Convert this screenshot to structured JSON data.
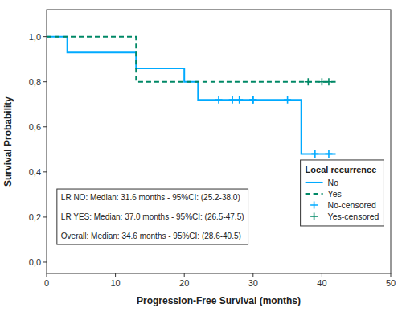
{
  "chart_data": {
    "type": "line",
    "xlabel": "Progression-Free Survival (months)",
    "ylabel": "Survival Probability",
    "legend_title": "Local recurrence",
    "annotation": "LR NO: Median: 31.6 months - 95%CI: (25.2-38.0)\n\nLR YES: Median: 37.0 months - 95%CI: (26.5-47.5)\n\nOverall: Median: 34.6 months - 95%CI: (28.6-40.5)",
    "xlim": [
      0,
      50
    ],
    "ylim": [
      -0.05,
      1.12
    ],
    "xticks": [
      0,
      10,
      20,
      30,
      40,
      50
    ],
    "yticks": [
      {
        "value": 0.0,
        "label": "0,0"
      },
      {
        "value": 0.2,
        "label": "0,2"
      },
      {
        "value": 0.4,
        "label": "0,4"
      },
      {
        "value": 0.6,
        "label": "0,6"
      },
      {
        "value": 0.8,
        "label": "0,8"
      },
      {
        "value": 1.0,
        "label": "1,0"
      }
    ],
    "grid": false,
    "legend": "lower right",
    "series": [
      {
        "name": "No",
        "type": "step",
        "color": "#00AAFF",
        "line_style": "solid",
        "x": [
          0,
          3,
          3,
          5,
          5,
          13,
          13,
          20,
          20,
          22,
          22,
          24,
          24,
          37,
          37,
          42
        ],
        "values": [
          1.0,
          1.0,
          0.93,
          0.93,
          0.93,
          0.93,
          0.86,
          0.86,
          0.8,
          0.8,
          0.72,
          0.72,
          0.72,
          0.72,
          0.48,
          0.48
        ]
      },
      {
        "name": "Yes",
        "type": "step",
        "color": "#008866",
        "line_style": "dashed",
        "x": [
          0,
          13,
          13,
          42
        ],
        "values": [
          1.0,
          1.0,
          0.8,
          0.8
        ]
      },
      {
        "name": "No-censored",
        "type": "scatter",
        "color": "#00AAFF",
        "marker": "plus",
        "x": [
          25,
          27,
          28,
          30,
          30,
          35,
          39,
          41
        ],
        "values": [
          0.72,
          0.72,
          0.72,
          0.72,
          0.72,
          0.72,
          0.48,
          0.48
        ]
      },
      {
        "name": "Yes-censored",
        "type": "scatter",
        "color": "#008866",
        "marker": "plus",
        "x": [
          38,
          40,
          41
        ],
        "values": [
          0.8,
          0.8,
          0.8
        ]
      }
    ]
  }
}
